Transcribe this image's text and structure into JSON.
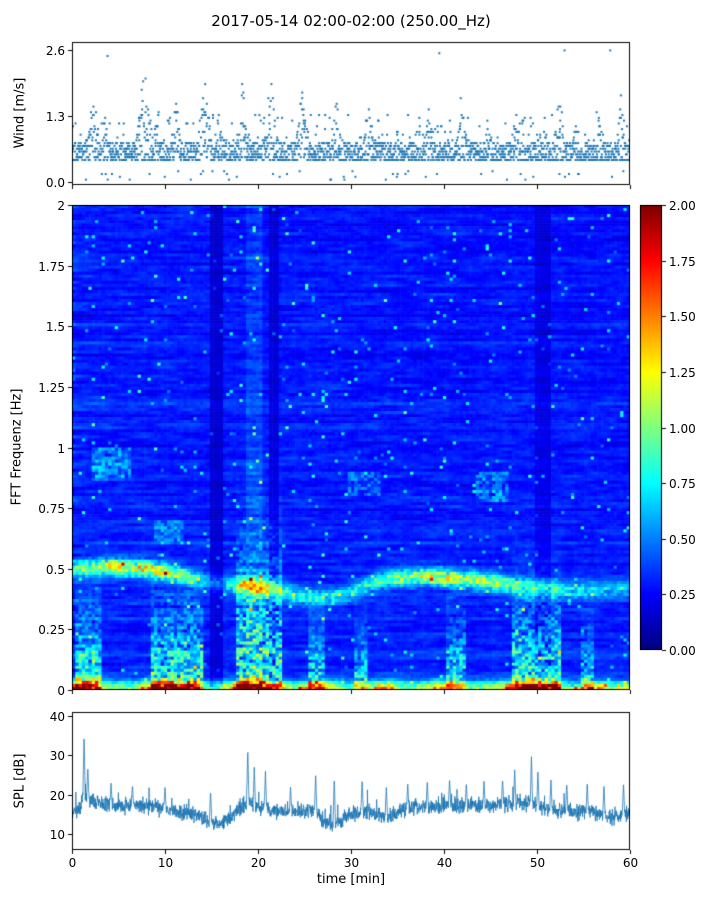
{
  "title": "2017-05-14 02:00-02:00 (250.00_Hz)",
  "colors": {
    "accent": "#1f77b4",
    "axis": "#000000",
    "background": "#ffffff"
  },
  "colorbar": {
    "clim": [
      0,
      2
    ],
    "tick_values": [
      2,
      1.75,
      1.5,
      1.25,
      1,
      0.75,
      0.5,
      0.25,
      0
    ],
    "tick_labels": [
      "2.00",
      "1.75",
      "1.50",
      "1.25",
      "1.00",
      "0.75",
      "0.50",
      "0.25",
      "0.00"
    ]
  },
  "chart_data": [
    {
      "type": "scatter",
      "name": "wind-speed",
      "title": "",
      "ylabel": "Wind [m/s]",
      "xlim": [
        0,
        60
      ],
      "ylim": [
        -0.05,
        2.75
      ],
      "yticks": [
        0.0,
        1.3,
        2.6
      ],
      "ytick_labels": [
        "0.0",
        "1.3",
        "2.6"
      ],
      "marker_color": "#1f77b4",
      "seed": 42,
      "n_points": 2200,
      "base_low": 0.42,
      "base_top": 0.8,
      "quantize": 0.055,
      "gusts": [
        [
          2.2,
          1.2,
          2.1
        ],
        [
          3.6,
          0.8,
          1.45
        ],
        [
          7.8,
          1.4,
          2.45
        ],
        [
          9.2,
          0.7,
          1.6
        ],
        [
          11.2,
          1.0,
          1.7
        ],
        [
          14.3,
          1.2,
          2.1
        ],
        [
          16.1,
          0.7,
          1.25
        ],
        [
          18.4,
          1.1,
          2.25
        ],
        [
          21.4,
          1.2,
          2.2
        ],
        [
          24.8,
          1.2,
          1.9
        ],
        [
          28.4,
          1.1,
          1.65
        ],
        [
          31.8,
          1.0,
          1.5
        ],
        [
          35.0,
          0.9,
          1.15
        ],
        [
          38.3,
          1.0,
          1.5
        ],
        [
          41.8,
          1.3,
          1.7
        ],
        [
          44.8,
          1.0,
          1.35
        ],
        [
          47.8,
          1.1,
          1.55
        ],
        [
          50.6,
          0.9,
          1.65
        ],
        [
          52.4,
          1.0,
          2.05
        ],
        [
          54.3,
          0.8,
          1.45
        ],
        [
          56.6,
          1.0,
          1.55
        ],
        [
          59.0,
          0.9,
          1.75
        ]
      ]
    },
    {
      "type": "heatmap",
      "name": "spectrogram",
      "ylabel": "FFT Frequenz [Hz]",
      "xlim": [
        0,
        60
      ],
      "ylim": [
        0,
        2
      ],
      "yticks": [
        0,
        0.25,
        0.5,
        0.75,
        1,
        1.25,
        1.5,
        1.75,
        2
      ],
      "ytick_labels": [
        "0",
        "0.25",
        "0.5",
        "0.75",
        "1",
        "1.25",
        "1.5",
        "1.75",
        "2"
      ],
      "colormap": "jet",
      "clim": [
        0,
        2
      ],
      "seed": 7,
      "grid": {
        "nt": 170,
        "nf": 160
      },
      "background": {
        "base": 0.14,
        "vary": 0.34
      },
      "band_width": 0.035,
      "band_center": [
        [
          0,
          0.5
        ],
        [
          4,
          0.51
        ],
        [
          8,
          0.5
        ],
        [
          11,
          0.48
        ],
        [
          13,
          0.46
        ],
        [
          15,
          0.44
        ],
        [
          17,
          0.43
        ],
        [
          19,
          0.43
        ],
        [
          21,
          0.42
        ],
        [
          23,
          0.4
        ],
        [
          25,
          0.38
        ],
        [
          27,
          0.38
        ],
        [
          29,
          0.39
        ],
        [
          31,
          0.42
        ],
        [
          33,
          0.45
        ],
        [
          35,
          0.46
        ],
        [
          38,
          0.47
        ],
        [
          41,
          0.46
        ],
        [
          44,
          0.45
        ],
        [
          46,
          0.44
        ],
        [
          48,
          0.43
        ],
        [
          50,
          0.42
        ],
        [
          53,
          0.41
        ],
        [
          56,
          0.41
        ],
        [
          60,
          0.42
        ]
      ],
      "band_amp": [
        [
          0,
          0.6
        ],
        [
          2,
          0.8
        ],
        [
          4,
          0.95
        ],
        [
          6,
          0.9
        ],
        [
          8,
          1.0
        ],
        [
          10,
          0.9
        ],
        [
          12,
          0.7
        ],
        [
          14,
          0.35
        ],
        [
          16,
          0.3
        ],
        [
          18,
          0.75
        ],
        [
          19,
          0.95
        ],
        [
          21,
          0.8
        ],
        [
          23,
          0.55
        ],
        [
          25,
          0.5
        ],
        [
          27,
          0.5
        ],
        [
          29,
          0.45
        ],
        [
          31,
          0.5
        ],
        [
          33,
          0.6
        ],
        [
          35,
          0.8
        ],
        [
          37,
          0.85
        ],
        [
          39,
          0.9
        ],
        [
          41,
          0.95
        ],
        [
          43,
          0.85
        ],
        [
          45,
          0.8
        ],
        [
          47,
          0.65
        ],
        [
          49,
          0.6
        ],
        [
          51,
          0.55
        ],
        [
          53,
          0.5
        ],
        [
          55,
          0.45
        ],
        [
          57,
          0.4
        ],
        [
          60,
          0.35
        ]
      ],
      "low_amp": [
        [
          0,
          1.7
        ],
        [
          1,
          2.0
        ],
        [
          2,
          1.9
        ],
        [
          3,
          1.2
        ],
        [
          4,
          0.9
        ],
        [
          5,
          0.8
        ],
        [
          6,
          0.9
        ],
        [
          7,
          1.1
        ],
        [
          8,
          1.6
        ],
        [
          9,
          1.9
        ],
        [
          10,
          2.0
        ],
        [
          11,
          1.8
        ],
        [
          12,
          1.9
        ],
        [
          13,
          1.6
        ],
        [
          14,
          0.9
        ],
        [
          15,
          0.7
        ],
        [
          16,
          1.0
        ],
        [
          17,
          1.5
        ],
        [
          18,
          1.9
        ],
        [
          19,
          2.0
        ],
        [
          20,
          2.0
        ],
        [
          21,
          1.7
        ],
        [
          22,
          1.5
        ],
        [
          23,
          1.1
        ],
        [
          24,
          0.9
        ],
        [
          25,
          1.2
        ],
        [
          26,
          1.6
        ],
        [
          27,
          1.4
        ],
        [
          28,
          1.2
        ],
        [
          29,
          0.9
        ],
        [
          30,
          0.8
        ],
        [
          31,
          1.0
        ],
        [
          32,
          1.1
        ],
        [
          33,
          1.4
        ],
        [
          34,
          1.5
        ],
        [
          35,
          1.0
        ],
        [
          36,
          0.8
        ],
        [
          37,
          0.9
        ],
        [
          38,
          1.1
        ],
        [
          39,
          1.3
        ],
        [
          40,
          1.6
        ],
        [
          41,
          1.2
        ],
        [
          42,
          0.9
        ],
        [
          43,
          0.8
        ],
        [
          44,
          0.9
        ],
        [
          45,
          1.0
        ],
        [
          46,
          1.1
        ],
        [
          47,
          1.5
        ],
        [
          48,
          1.9
        ],
        [
          49,
          2.0
        ],
        [
          50,
          2.0
        ],
        [
          51,
          1.8
        ],
        [
          52,
          1.6
        ],
        [
          53,
          1.0
        ],
        [
          54,
          0.8
        ],
        [
          55,
          1.2
        ],
        [
          56,
          1.5
        ],
        [
          57,
          1.1
        ],
        [
          58,
          0.9
        ],
        [
          59,
          1.0
        ],
        [
          60,
          1.1
        ]
      ],
      "blobs": [
        [
          0.5,
          3.2,
          0.3,
          0.55
        ],
        [
          8.5,
          14.2,
          0.3,
          0.6
        ],
        [
          17.8,
          22.6,
          0.5,
          0.65
        ],
        [
          25.4,
          27.2,
          0.25,
          0.5
        ],
        [
          30.4,
          31.8,
          0.22,
          0.45
        ],
        [
          40.3,
          42.2,
          0.26,
          0.5
        ],
        [
          47.3,
          52.6,
          0.34,
          0.6
        ],
        [
          54.8,
          56.2,
          0.22,
          0.45
        ]
      ],
      "columns": [
        [
          14.7,
          16.3,
          0.55
        ],
        [
          21.2,
          22.4,
          0.6
        ],
        [
          49.9,
          51.7,
          0.7
        ],
        [
          18.6,
          20.4,
          1.3
        ]
      ],
      "patches": [
        [
          2,
          6.5,
          0.86,
          1.0,
          0.4
        ],
        [
          29.5,
          33,
          0.8,
          0.9,
          0.28
        ],
        [
          43.5,
          47,
          0.78,
          0.9,
          0.32
        ],
        [
          9,
          12,
          0.6,
          0.7,
          0.3
        ]
      ]
    },
    {
      "type": "line",
      "name": "spl",
      "ylabel": "SPL [dB]",
      "xlabel": "time [min]",
      "xlim": [
        0,
        60
      ],
      "ylim": [
        6,
        41
      ],
      "yticks": [
        10,
        20,
        30,
        40
      ],
      "ytick_labels": [
        "10",
        "20",
        "30",
        "40"
      ],
      "xticks": [
        0,
        10,
        20,
        30,
        40,
        50,
        60
      ],
      "xtick_labels": [
        "0",
        "10",
        "20",
        "30",
        "40",
        "50",
        "60"
      ],
      "line_color": "#1f77b4",
      "seed": 99,
      "n_points": 2600,
      "noise_amp": 1.9,
      "baseline": [
        [
          0,
          15.5
        ],
        [
          0.8,
          16
        ],
        [
          1.2,
          20
        ],
        [
          2,
          18.5
        ],
        [
          3,
          18
        ],
        [
          5,
          17
        ],
        [
          7,
          17.5
        ],
        [
          9,
          17
        ],
        [
          11,
          16
        ],
        [
          13,
          15
        ],
        [
          15,
          13
        ],
        [
          16,
          12.5
        ],
        [
          17,
          14
        ],
        [
          18,
          16.5
        ],
        [
          19,
          18.5
        ],
        [
          20,
          17
        ],
        [
          21,
          16.5
        ],
        [
          23,
          15.5
        ],
        [
          25,
          16
        ],
        [
          26,
          16.5
        ],
        [
          27,
          13.5
        ],
        [
          28,
          12.5
        ],
        [
          29,
          13.5
        ],
        [
          30,
          15
        ],
        [
          31,
          16
        ],
        [
          33,
          15
        ],
        [
          34,
          14.5
        ],
        [
          35,
          15.5
        ],
        [
          36,
          16.5
        ],
        [
          37,
          17
        ],
        [
          38,
          16.5
        ],
        [
          39,
          17
        ],
        [
          40,
          17.5
        ],
        [
          41,
          17.5
        ],
        [
          42,
          17
        ],
        [
          43,
          17.5
        ],
        [
          44,
          17
        ],
        [
          45,
          17
        ],
        [
          46,
          17.5
        ],
        [
          47,
          17.5
        ],
        [
          48,
          18
        ],
        [
          49,
          18
        ],
        [
          50,
          17
        ],
        [
          51,
          16.5
        ],
        [
          52,
          16
        ],
        [
          53,
          16
        ],
        [
          54,
          15.5
        ],
        [
          55,
          16
        ],
        [
          56,
          15.5
        ],
        [
          57,
          15
        ],
        [
          58,
          14.5
        ],
        [
          59,
          15
        ],
        [
          60,
          15.5
        ]
      ],
      "spikes": [
        [
          1.3,
          35
        ],
        [
          1.7,
          27
        ],
        [
          4.2,
          23
        ],
        [
          6.5,
          22.5
        ],
        [
          10,
          22
        ],
        [
          14.9,
          21
        ],
        [
          18.9,
          31.5
        ],
        [
          19.6,
          27
        ],
        [
          20.8,
          26
        ],
        [
          23.5,
          22
        ],
        [
          26.2,
          25
        ],
        [
          28.2,
          24.5
        ],
        [
          31.2,
          24
        ],
        [
          33.8,
          22
        ],
        [
          36.1,
          23
        ],
        [
          38.2,
          23.5
        ],
        [
          40.6,
          24
        ],
        [
          42.4,
          23
        ],
        [
          44.3,
          23.5
        ],
        [
          46.3,
          24
        ],
        [
          47.6,
          26.5
        ],
        [
          49.4,
          30
        ],
        [
          50.1,
          26
        ],
        [
          51.5,
          24
        ],
        [
          53.2,
          23
        ],
        [
          55.4,
          23
        ],
        [
          57.2,
          22.5
        ],
        [
          59.3,
          23
        ]
      ]
    }
  ]
}
